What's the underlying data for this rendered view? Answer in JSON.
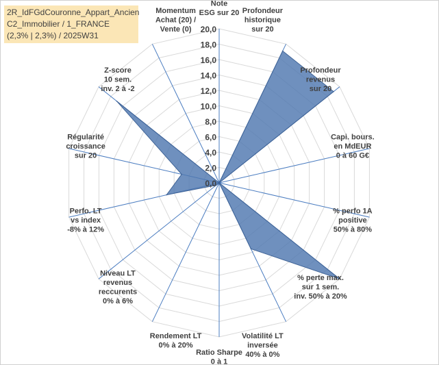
{
  "title_box": {
    "line1": "2R_IdFGdCouronne_Appart_Ancien",
    "line2": "C2_Immobilier / 1_FRANCE",
    "line3": "(2,3% | 2,3%) / 2025W31"
  },
  "chart_data": {
    "type": "radar",
    "rmin": 0,
    "rmax": 20,
    "tick_labels": [
      "0,0",
      "2,0",
      "4,0",
      "6,0",
      "8,0",
      "10,0",
      "12,0",
      "14,0",
      "16,0",
      "18,0",
      "20,0"
    ],
    "axes": [
      {
        "lines": [
          "Note",
          "ESG sur 20"
        ]
      },
      {
        "lines": [
          "Profondeur",
          "historique",
          "sur 20"
        ]
      },
      {
        "lines": [
          "Profondeur",
          "revenus",
          "sur 20"
        ]
      },
      {
        "lines": [
          "Capi. bours.",
          "en MdEUR",
          "0 à 60 G€"
        ]
      },
      {
        "lines": [
          "% perfo 1A",
          "positive",
          "50% à 80%"
        ]
      },
      {
        "lines": [
          "% perte max.",
          "sur 1 sem.",
          "inv. 50% à 20%"
        ]
      },
      {
        "lines": [
          "Volatilité LT",
          "inversée",
          "40% à 0%"
        ]
      },
      {
        "lines": [
          "Ratio Sharpe",
          "0 à 1"
        ]
      },
      {
        "lines": [
          "Rendement LT",
          "0% à 20%"
        ]
      },
      {
        "lines": [
          "Niveau LT",
          "revenus",
          "reccurents",
          "0% à 6%"
        ]
      },
      {
        "lines": [
          "Perfo. LT",
          "vs index",
          "-8% à 12%"
        ]
      },
      {
        "lines": [
          "Régularité",
          "croissance",
          "sur 20"
        ]
      },
      {
        "lines": [
          "Z-score",
          "10 sem.",
          "inv. 2 à -2"
        ]
      },
      {
        "lines": [
          "Momentum",
          "Achat (20) /",
          "Vente (0)"
        ]
      }
    ],
    "series": [
      {
        "values": [
          0.0,
          19.0,
          19.0,
          0.0,
          0.0,
          20.0,
          9.5,
          0.0,
          0.0,
          0.5,
          7.0,
          5.0,
          17.0,
          0.0
        ]
      }
    ],
    "colors": {
      "fill": "#4f78b0",
      "fill_opacity": 0.82,
      "stroke": "#3f6396",
      "grid": "#d9d9d9",
      "spoke": "#4a7cc0"
    },
    "grid": true
  }
}
